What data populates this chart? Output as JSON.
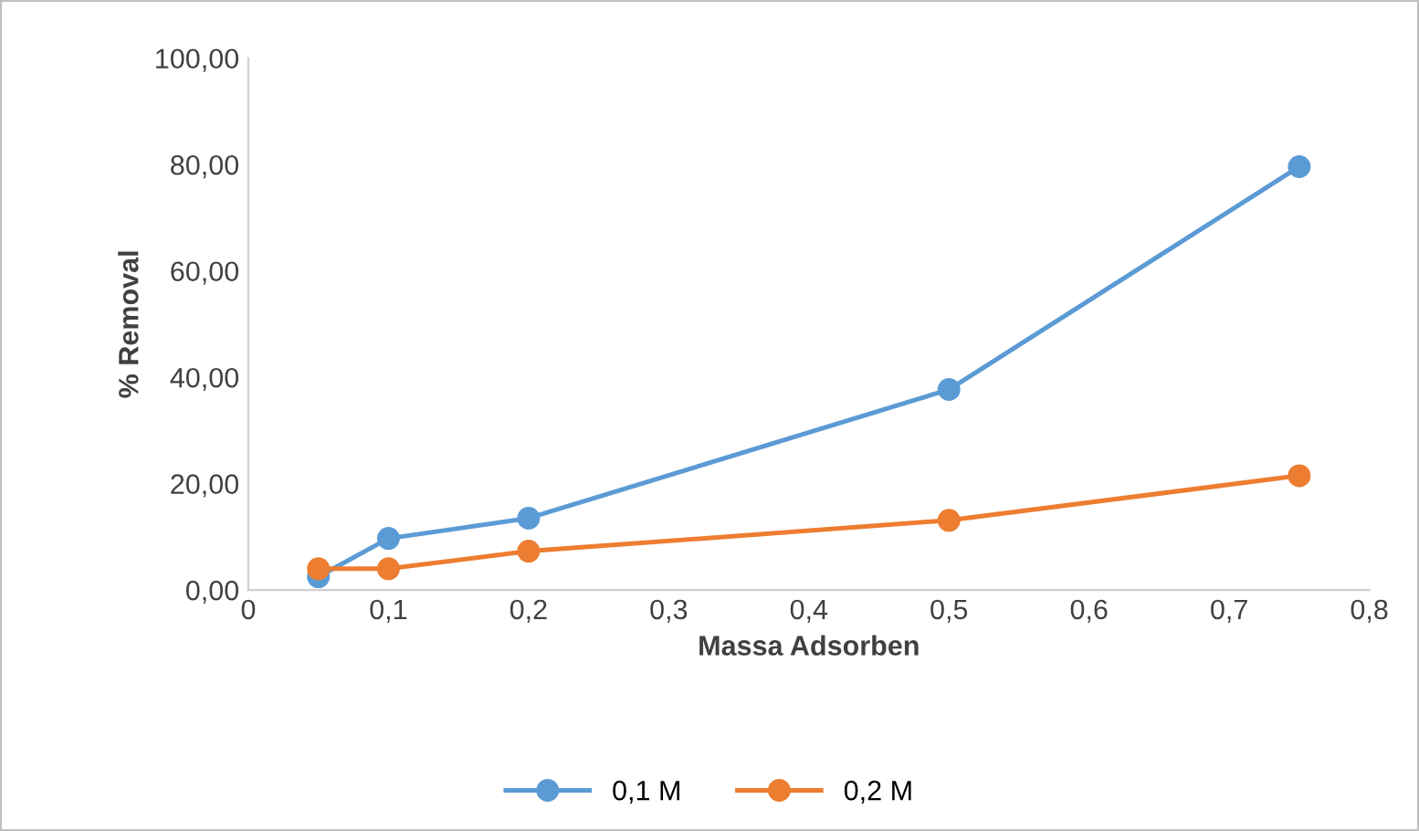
{
  "chart_data": {
    "type": "line",
    "xlabel": "Massa Adsorben",
    "ylabel": "% Removal",
    "x": [
      0.05,
      0.1,
      0.2,
      0.5,
      0.75
    ],
    "series": [
      {
        "name": "0,1 M",
        "color": "#5b9bd5",
        "values": [
          2.5,
          9.7,
          13.5,
          37.7,
          79.6
        ]
      },
      {
        "name": "0,2 M",
        "color": "#ed7d31",
        "values": [
          4.0,
          4.0,
          7.3,
          13.1,
          21.5
        ]
      }
    ],
    "xlim": [
      0,
      0.8
    ],
    "xticks": [
      0,
      {
        "value": 0.1,
        "label": "0,1"
      },
      {
        "value": 0.2,
        "label": "0,2"
      },
      {
        "value": 0.3,
        "label": "0,3"
      },
      {
        "value": 0.4,
        "label": "0,4"
      },
      {
        "value": 0.5,
        "label": "0,5"
      },
      {
        "value": 0.6,
        "label": "0,6"
      },
      {
        "value": 0.7,
        "label": "0,7"
      },
      {
        "value": 0.8,
        "label": "0,8"
      }
    ],
    "ylim": [
      0,
      100
    ],
    "yticks": [
      {
        "value": 0,
        "label": "0,00"
      },
      {
        "value": 20,
        "label": "20,00"
      },
      {
        "value": 40,
        "label": "40,00"
      },
      {
        "value": 60,
        "label": "60,00"
      },
      {
        "value": 80,
        "label": "80,00"
      },
      {
        "value": 100,
        "label": "100,00"
      }
    ],
    "grid": false,
    "legend": "bottom",
    "marker": "circle",
    "line_style": "solid"
  }
}
